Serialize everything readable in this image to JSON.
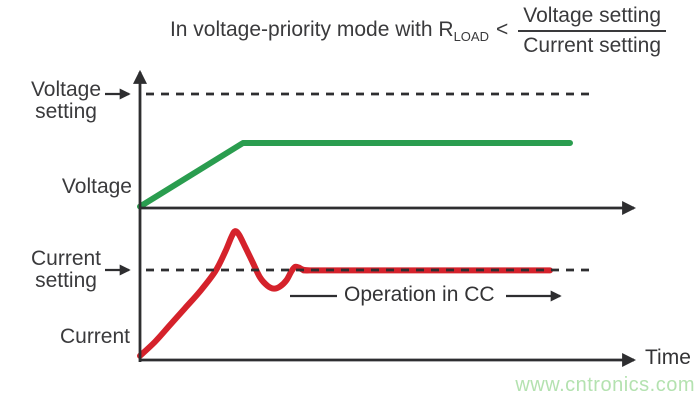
{
  "title": {
    "prefix": "In voltage-priority mode with R",
    "subscript": "LOAD",
    "comparator": "<",
    "fraction": {
      "numerator": "Voltage setting",
      "denominator": "Current setting"
    }
  },
  "labels": {
    "voltage_setting_lines": [
      "Voltage",
      "setting"
    ],
    "voltage_axis": "Voltage",
    "current_setting_lines": [
      "Current",
      "setting"
    ],
    "current_axis": "Current",
    "operation_cc": "Operation in CC",
    "time_axis": "Time"
  },
  "watermark": "www.cntronics.com",
  "colors": {
    "voltage_curve": "#2a9d4f",
    "current_curve": "#d5222b",
    "axis": "#2e2e30",
    "text": "#3a3a3c",
    "watermark": "#b4e2b0"
  },
  "chart_data": {
    "type": "line",
    "title": "In voltage-priority mode with R_LOAD < Voltage setting / Current setting",
    "xlabel": "Time",
    "grid": false,
    "subplots": [
      {
        "name": "voltage-vs-time",
        "ylabel": "Voltage",
        "xlim": [
          0,
          100
        ],
        "ylim": [
          0,
          100
        ],
        "reference_level": {
          "label": "Voltage setting",
          "value": 81.4,
          "style": "dashed"
        },
        "series": [
          {
            "name": "Voltage",
            "color": "#2a9d4f",
            "interpolation": "linear",
            "points": [
              [
                0,
                1
              ],
              [
                20.6,
                46.4
              ],
              [
                86,
                46.4
              ]
            ]
          }
        ]
      },
      {
        "name": "current-vs-time",
        "ylabel": "Current",
        "xlabel": "Time",
        "xlim": [
          0,
          100
        ],
        "ylim": [
          0,
          100
        ],
        "reference_level": {
          "label": "Current setting",
          "value": 64.3,
          "style": "dashed"
        },
        "annotation": {
          "text": "Operation in CC",
          "x_range": [
            30,
            86
          ]
        },
        "series": [
          {
            "name": "Current",
            "color": "#d5222b",
            "interpolation": "smooth",
            "points": [
              [
                0,
                3
              ],
              [
                3,
                13
              ],
              [
                6,
                25
              ],
              [
                9,
                37
              ],
              [
                12,
                49
              ],
              [
                15,
                63
              ],
              [
                17,
                77
              ],
              [
                18.3,
                88
              ],
              [
                19,
                92
              ],
              [
                19.8,
                89.5
              ],
              [
                21,
                81
              ],
              [
                22.5,
                70
              ],
              [
                24,
                59
              ],
              [
                25.5,
                53
              ],
              [
                26.8,
                51
              ],
              [
                28,
                52.5
              ],
              [
                29.3,
                57
              ],
              [
                30.3,
                63.5
              ],
              [
                31,
                66.5
              ],
              [
                31.8,
                66
              ],
              [
                32.6,
                64.5
              ],
              [
                34,
                64
              ],
              [
                37,
                64
              ],
              [
                82,
                64
              ]
            ]
          }
        ]
      }
    ]
  }
}
